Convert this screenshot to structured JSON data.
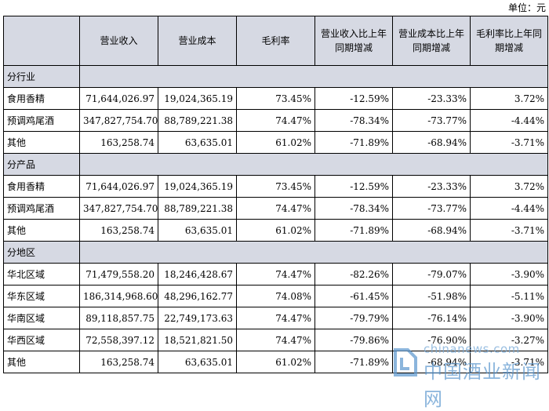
{
  "unit_label": "单位：元",
  "columns": [
    "",
    "营业收入",
    "营业成本",
    "毛利率",
    "营业收入比上年同期增减",
    "营业成本比上年同期增减",
    "毛利率比上年同期增减"
  ],
  "sections": [
    {
      "title": "分行业",
      "rows": [
        {
          "label": "食用香精",
          "revenue": "71,644,026.97",
          "cost": "19,024,365.19",
          "margin": "73.45%",
          "rev_change": "-12.59%",
          "cost_change": "-23.33%",
          "margin_change": "3.72%"
        },
        {
          "label": "预调鸡尾酒",
          "revenue": "347,827,754.70",
          "cost": "88,789,221.38",
          "margin": "74.47%",
          "rev_change": "-78.34%",
          "cost_change": "-73.77%",
          "margin_change": "-4.44%"
        },
        {
          "label": "其他",
          "revenue": "163,258.74",
          "cost": "63,635.01",
          "margin": "61.02%",
          "rev_change": "-71.89%",
          "cost_change": "-68.94%",
          "margin_change": "-3.71%"
        }
      ]
    },
    {
      "title": "分产品",
      "rows": [
        {
          "label": "食用香精",
          "revenue": "71,644,026.97",
          "cost": "19,024,365.19",
          "margin": "73.45%",
          "rev_change": "-12.59%",
          "cost_change": "-23.33%",
          "margin_change": "3.72%"
        },
        {
          "label": "预调鸡尾酒",
          "revenue": "347,827,754.70",
          "cost": "88,789,221.38",
          "margin": "74.47%",
          "rev_change": "-78.34%",
          "cost_change": "-73.77%",
          "margin_change": "-4.44%"
        },
        {
          "label": "其他",
          "revenue": "163,258.74",
          "cost": "63,635.01",
          "margin": "61.02%",
          "rev_change": "-71.89%",
          "cost_change": "-68.94%",
          "margin_change": "-3.71%"
        }
      ]
    },
    {
      "title": "分地区",
      "rows": [
        {
          "label": "华北区域",
          "revenue": "71,479,558.20",
          "cost": "18,246,428.67",
          "margin": "74.47%",
          "rev_change": "-82.26%",
          "cost_change": "-79.07%",
          "margin_change": "-3.90%"
        },
        {
          "label": "华东区域",
          "revenue": "186,314,968.60",
          "cost": "48,296,162.77",
          "margin": "74.08%",
          "rev_change": "-61.45%",
          "cost_change": "-51.98%",
          "margin_change": "-5.11%"
        },
        {
          "label": "华南区域",
          "revenue": "89,118,857.75",
          "cost": "22,749,173.63",
          "margin": "74.47%",
          "rev_change": "-79.79%",
          "cost_change": "-76.14%",
          "margin_change": "-3.90%"
        },
        {
          "label": "华西区域",
          "revenue": "72,558,397.12",
          "cost": "18,521,821.50",
          "margin": "74.47%",
          "rev_change": "-79.86%",
          "cost_change": "-76.90%",
          "margin_change": "-3.27%"
        },
        {
          "label": "其他",
          "revenue": "163,258.74",
          "cost": "63,635.01",
          "margin": "61.02%",
          "rev_change": "-71.89%",
          "cost_change": "-68.94%",
          "margin_change": "-3.71%"
        }
      ]
    }
  ],
  "watermark": {
    "url": "chinanews.com",
    "name": "中国酒业新闻网"
  }
}
